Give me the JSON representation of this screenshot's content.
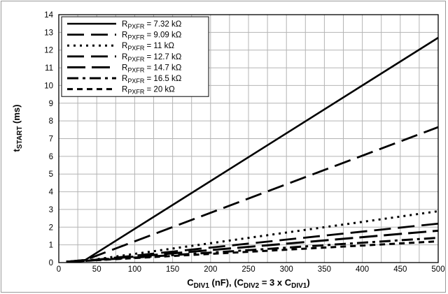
{
  "chart_data": {
    "type": "line",
    "xlim": [
      0,
      500
    ],
    "ylim": [
      0,
      14
    ],
    "x_ticks": [
      "0",
      "50",
      "100",
      "150",
      "200",
      "250",
      "300",
      "350",
      "400",
      "450",
      "500"
    ],
    "y_ticks": [
      "0",
      "1",
      "2",
      "3",
      "4",
      "5",
      "6",
      "7",
      "8",
      "9",
      "10",
      "11",
      "12",
      "13",
      "14"
    ],
    "xlabel": {
      "parts": [
        {
          "t": "C",
          "sub": false
        },
        {
          "t": "DIV1",
          "sub": true
        },
        {
          "t": " (nF), (C",
          "sub": false
        },
        {
          "t": "DIV2",
          "sub": true
        },
        {
          "t": " = 3 x C",
          "sub": false
        },
        {
          "t": "DIV1",
          "sub": true
        },
        {
          "t": ")",
          "sub": false
        }
      ]
    },
    "ylabel": {
      "parts": [
        {
          "t": "t",
          "sub": false
        },
        {
          "t": "START",
          "sub": true
        },
        {
          "t": " (ms)",
          "sub": false
        }
      ]
    },
    "grid": true,
    "legend_position": "top-left",
    "series": [
      {
        "name": "R_PXFR = 7.32 kΩ",
        "label_sub": "PXFR",
        "label_value": " = 7.32 kΩ",
        "style": "solid",
        "x": [
          10,
          35,
          500
        ],
        "y": [
          0.05,
          0.15,
          12.7
        ]
      },
      {
        "name": "R_PXFR = 9.09 kΩ",
        "label_sub": "PXFR",
        "label_value": " = 9.09 kΩ",
        "style": "long-dash",
        "x": [
          10,
          35,
          500
        ],
        "y": [
          0.05,
          0.15,
          7.65
        ]
      },
      {
        "name": "R_PXFR = 11 kΩ",
        "label_sub": "PXFR",
        "label_value": " = 11 kΩ",
        "style": "dot",
        "x": [
          10,
          35,
          500
        ],
        "y": [
          0.05,
          0.1,
          2.9
        ]
      },
      {
        "name": "R_PXFR = 12.7 kΩ",
        "label_sub": "PXFR",
        "label_value": " = 12.7 kΩ",
        "style": "long-dash",
        "x": [
          10,
          35,
          500
        ],
        "y": [
          0.05,
          0.1,
          2.2
        ]
      },
      {
        "name": "R_PXFR = 14.7 kΩ",
        "label_sub": "PXFR",
        "label_value": " = 14.7 kΩ",
        "style": "long-dash-wide",
        "x": [
          10,
          35,
          500
        ],
        "y": [
          0.05,
          0.1,
          1.8
        ]
      },
      {
        "name": "R_PXFR = 16.5 kΩ",
        "label_sub": "PXFR",
        "label_value": " = 16.5 kΩ",
        "style": "dash-dot",
        "x": [
          10,
          35,
          500
        ],
        "y": [
          0.05,
          0.1,
          1.4
        ]
      },
      {
        "name": "R_PXFR = 20 kΩ",
        "label_sub": "PXFR",
        "label_value": " = 20 kΩ",
        "style": "short-dash",
        "x": [
          10,
          35,
          500
        ],
        "y": [
          0.05,
          0.1,
          1.2
        ]
      }
    ],
    "legend_prefix": "R"
  }
}
